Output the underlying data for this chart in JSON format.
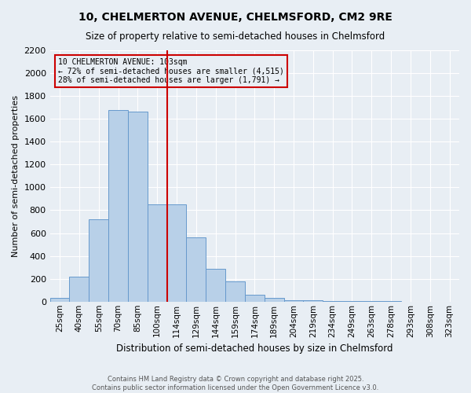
{
  "title": "10, CHELMERTON AVENUE, CHELMSFORD, CM2 9RE",
  "subtitle": "Size of property relative to semi-detached houses in Chelmsford",
  "xlabel": "Distribution of semi-detached houses by size in Chelmsford",
  "ylabel": "Number of semi-detached properties",
  "categories": [
    "25sqm",
    "40sqm",
    "55sqm",
    "70sqm",
    "85sqm",
    "100sqm",
    "114sqm",
    "129sqm",
    "144sqm",
    "159sqm",
    "174sqm",
    "189sqm",
    "204sqm",
    "219sqm",
    "234sqm",
    "249sqm",
    "263sqm",
    "278sqm",
    "293sqm",
    "308sqm",
    "323sqm"
  ],
  "bar_values": [
    30,
    220,
    720,
    1680,
    1660,
    850,
    850,
    560,
    290,
    175,
    60,
    30,
    15,
    10,
    8,
    5,
    3,
    2,
    1,
    1,
    1
  ],
  "property_label": "10 CHELMERTON AVENUE: 103sqm",
  "smaller_pct": "72%",
  "smaller_n": "4,515",
  "larger_pct": "28%",
  "larger_n": "1,791",
  "bar_color": "#b8d0e8",
  "bar_edge_color": "#6699cc",
  "line_color": "#cc0000",
  "background_color": "#e8eef4",
  "grid_color": "#ffffff",
  "ylim": [
    0,
    2200
  ],
  "yticks": [
    0,
    200,
    400,
    600,
    800,
    1000,
    1200,
    1400,
    1600,
    1800,
    2000,
    2200
  ],
  "footer": "Contains HM Land Registry data © Crown copyright and database right 2025.\nContains public sector information licensed under the Open Government Licence v3.0."
}
